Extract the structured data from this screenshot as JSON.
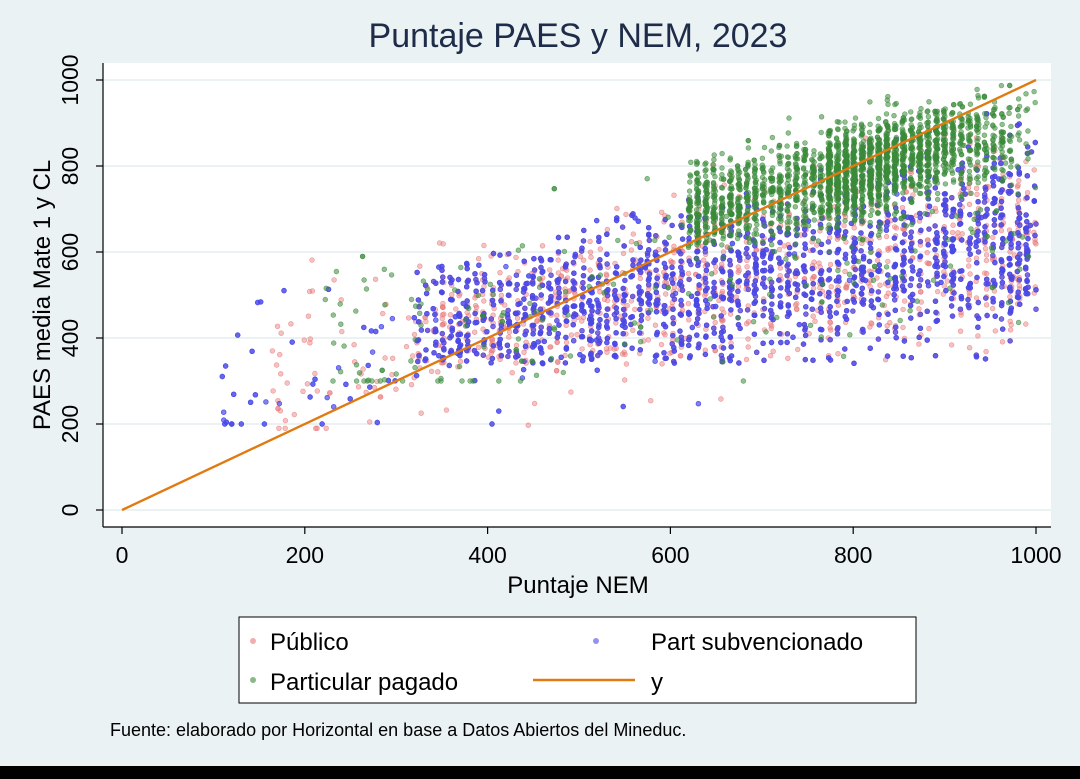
{
  "chart_data": {
    "type": "scatter",
    "title": "Puntaje PAES y NEM, 2023",
    "xlabel": "Puntaje NEM",
    "ylabel": "PAES media Mate 1 y CL",
    "xlim": [
      0,
      1000
    ],
    "ylim": [
      0,
      1000
    ],
    "xticks": [
      "0",
      "200",
      "400",
      "600",
      "800",
      "1000"
    ],
    "yticks": [
      "0",
      "200",
      "400",
      "600",
      "800",
      "1000"
    ],
    "grid": "horizontal",
    "legend_placement": "bottom",
    "series": [
      {
        "name": "Público",
        "color": "#e87878",
        "x_range": [
          160,
          1000
        ],
        "y_range": [
          190,
          990
        ],
        "dense_range": {
          "x": [
            320,
            1000
          ],
          "y": [
            330,
            960
          ]
        }
      },
      {
        "name": "Part subvencionado",
        "color": "#4a4ae8",
        "x_range": [
          100,
          1000
        ],
        "y_range": [
          200,
          995
        ],
        "dense_range": {
          "x": [
            320,
            1000
          ],
          "y": [
            350,
            960
          ]
        }
      },
      {
        "name": "Particular pagado",
        "color": "#3a8a3a",
        "x_range": [
          220,
          1000
        ],
        "y_range": [
          300,
          995
        ],
        "dense_range": {
          "x": [
            620,
            1000
          ],
          "y": [
            600,
            990
          ]
        }
      },
      {
        "name": "y",
        "type": "line",
        "color": "#e07b12",
        "x": [
          0,
          1000
        ],
        "y": [
          0,
          1000
        ]
      }
    ],
    "legend": [
      {
        "label": "Público",
        "marker": "dot",
        "color": "#e87878"
      },
      {
        "label": "Part subvencionado",
        "marker": "dot",
        "color": "#4a4ae8"
      },
      {
        "label": "Particular pagado",
        "marker": "dot",
        "color": "#3a8a3a"
      },
      {
        "label": "y",
        "marker": "line",
        "color": "#e07b12"
      }
    ]
  },
  "footnote": "Fuente: elaborado por Horizontal en base a Datos Abiertos del Mineduc.",
  "colors": {
    "background": "#eaf2f3",
    "plot_background": "#ffffff",
    "title": "#1e2c4a",
    "gridline": "#e4eef0"
  }
}
